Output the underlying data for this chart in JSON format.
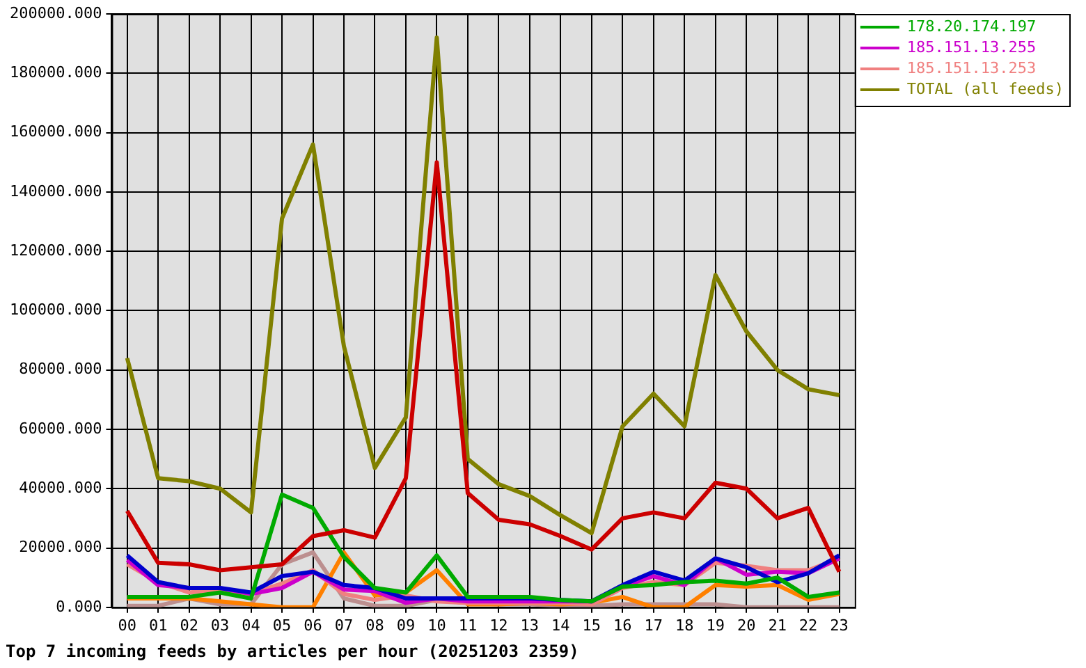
{
  "chart_data": {
    "type": "line",
    "title": "Top 7 incoming feeds by articles per hour (20251203 2359)",
    "categories": [
      "00",
      "01",
      "02",
      "03",
      "04",
      "05",
      "06",
      "07",
      "08",
      "09",
      "10",
      "11",
      "12",
      "13",
      "14",
      "15",
      "16",
      "17",
      "18",
      "19",
      "20",
      "21",
      "22",
      "23"
    ],
    "ylim": [
      0,
      200000
    ],
    "yticks": [
      {
        "value": 0,
        "label": "0.000"
      },
      {
        "value": 20000,
        "label": "20000.000"
      },
      {
        "value": 40000,
        "label": "40000.000"
      },
      {
        "value": 60000,
        "label": "60000.000"
      },
      {
        "value": 80000,
        "label": "80000.000"
      },
      {
        "value": 100000,
        "label": "100000.000"
      },
      {
        "value": 120000,
        "label": "120000.000"
      },
      {
        "value": 140000,
        "label": "140000.000"
      },
      {
        "value": 160000,
        "label": "160000.000"
      },
      {
        "value": 180000,
        "label": "180000.000"
      },
      {
        "value": 200000,
        "label": "200000.000"
      }
    ],
    "grid": true,
    "legend": "top right",
    "series": [
      {
        "color": "#cc0000",
        "values": [
          32500,
          15000,
          14500,
          12500,
          13500,
          14500,
          24000,
          26000,
          23500,
          43500,
          150000,
          38500,
          29500,
          28000,
          24000,
          19500,
          30000,
          32000,
          30000,
          42000,
          40000,
          30000,
          33500,
          12000
        ]
      },
      {
        "name": "178.20.174.197",
        "color": "#00aa00",
        "values": [
          3500,
          3500,
          3500,
          5000,
          3000,
          38000,
          33500,
          17000,
          6500,
          5000,
          17500,
          3500,
          3500,
          3500,
          2500,
          2000,
          7000,
          7500,
          8500,
          9000,
          8000,
          10000,
          3500,
          5000
        ]
      },
      {
        "color": "#0000cc",
        "values": [
          17500,
          8500,
          6500,
          6500,
          5000,
          10500,
          12000,
          7500,
          6500,
          3000,
          3000,
          3000,
          3000,
          3000,
          2500,
          2000,
          7500,
          12000,
          9000,
          16500,
          13500,
          8500,
          11500,
          17500
        ]
      },
      {
        "name": "185.151.13.255",
        "color": "#cc00cc",
        "values": [
          16000,
          7500,
          6500,
          6500,
          4500,
          6500,
          12000,
          6000,
          5500,
          1500,
          3000,
          2000,
          2000,
          2000,
          2000,
          2000,
          7000,
          10500,
          7500,
          16500,
          11000,
          12000,
          11500,
          16500
        ]
      },
      {
        "name": "185.151.13.253",
        "color": "#f08080",
        "values": [
          14500,
          8500,
          5000,
          6000,
          4500,
          8000,
          12500,
          4500,
          2500,
          4000,
          2000,
          1500,
          1500,
          1500,
          1500,
          1000,
          6500,
          8500,
          7500,
          15000,
          14000,
          12500,
          12500,
          16500
        ]
      },
      {
        "color": "#ff8000",
        "values": [
          3000,
          3000,
          3000,
          2000,
          1000,
          0,
          0,
          18500,
          4000,
          5000,
          12500,
          1000,
          1000,
          1500,
          1000,
          1500,
          3500,
          0,
          0,
          7500,
          7000,
          7500,
          2500,
          4500
        ]
      },
      {
        "color": "#bc8f8f",
        "values": [
          500,
          500,
          3000,
          1000,
          1000,
          14500,
          18500,
          3000,
          500,
          500,
          2500,
          1500,
          1000,
          1000,
          500,
          500,
          1000,
          1000,
          1000,
          1000,
          0,
          0,
          0,
          0
        ]
      },
      {
        "name": "TOTAL (all feeds)",
        "color": "#808000",
        "values": [
          84000,
          43500,
          42500,
          40000,
          32000,
          131000,
          156000,
          88000,
          47000,
          64000,
          192000,
          50000,
          41500,
          37500,
          31000,
          25000,
          61000,
          72000,
          61000,
          112000,
          93000,
          80000,
          73500,
          71500
        ]
      }
    ]
  }
}
